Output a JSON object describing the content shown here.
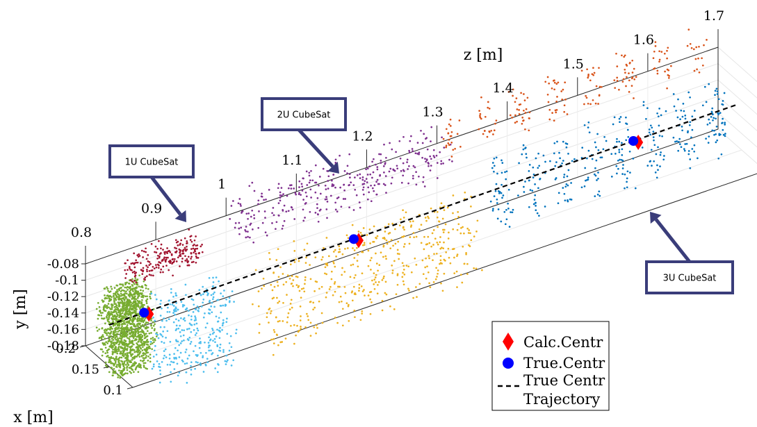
{
  "chart_data": {
    "type": "scatter",
    "projection": "3d",
    "xlabel": "x [m]",
    "ylabel": "y [m]",
    "zlabel": "z [m]",
    "z_ticks": [
      "0.8",
      "0.9",
      "1",
      "1.1",
      "1.2",
      "1.3",
      "1.4",
      "1.5",
      "1.6",
      "1.7"
    ],
    "y_ticks": [
      "-0.08",
      "-0.1",
      "-0.12",
      "-0.14",
      "-0.16",
      "-0.18"
    ],
    "x_ticks": [
      "0.2",
      "0.15",
      "0.1"
    ],
    "zlim": [
      0.8,
      1.7
    ],
    "ylim": [
      -0.18,
      -0.08
    ],
    "xlim": [
      0.1,
      0.2
    ],
    "grid": true,
    "legend": {
      "placement": "bottom-right",
      "entries": [
        {
          "label": "Calc.Centr",
          "marker": "diamond",
          "color": "#ff0000"
        },
        {
          "label": "True.Centr",
          "marker": "circle",
          "color": "#0000ff"
        },
        {
          "label_lines": [
            "True Centr",
            "Trajectory"
          ],
          "marker": "dashed-line",
          "color": "#000000"
        }
      ]
    },
    "annotations": [
      {
        "text": "1U CubeSat",
        "target_z": 0.85
      },
      {
        "text": "2U CubeSat",
        "target_z": 1.15
      },
      {
        "text": "3U CubeSat",
        "target_z": 1.55
      }
    ],
    "point_clouds": [
      {
        "color": "#77ac30",
        "z_range": [
          0.8,
          0.85
        ]
      },
      {
        "color": "#a2142f",
        "z_range": [
          0.85,
          0.95
        ]
      },
      {
        "color": "#4dbeee",
        "z_range": [
          0.85,
          0.95
        ]
      },
      {
        "color": "#7e2f8e",
        "z_range": [
          1.0,
          1.3
        ]
      },
      {
        "color": "#edb120",
        "z_range": [
          1.0,
          1.3
        ]
      },
      {
        "color": "#d95319",
        "z_range": [
          1.3,
          1.7
        ]
      },
      {
        "color": "#0072bd",
        "z_range": [
          1.35,
          1.7
        ]
      }
    ],
    "centroids": [
      {
        "z": 0.85
      },
      {
        "z": 1.15
      },
      {
        "z": 1.55
      }
    ],
    "trajectory": {
      "z_range": [
        0.8,
        1.7
      ],
      "style": "dashed",
      "color": "#000000"
    }
  },
  "callout_style": {
    "border_color": "#3a3d7a",
    "fill": "#ffffff"
  }
}
